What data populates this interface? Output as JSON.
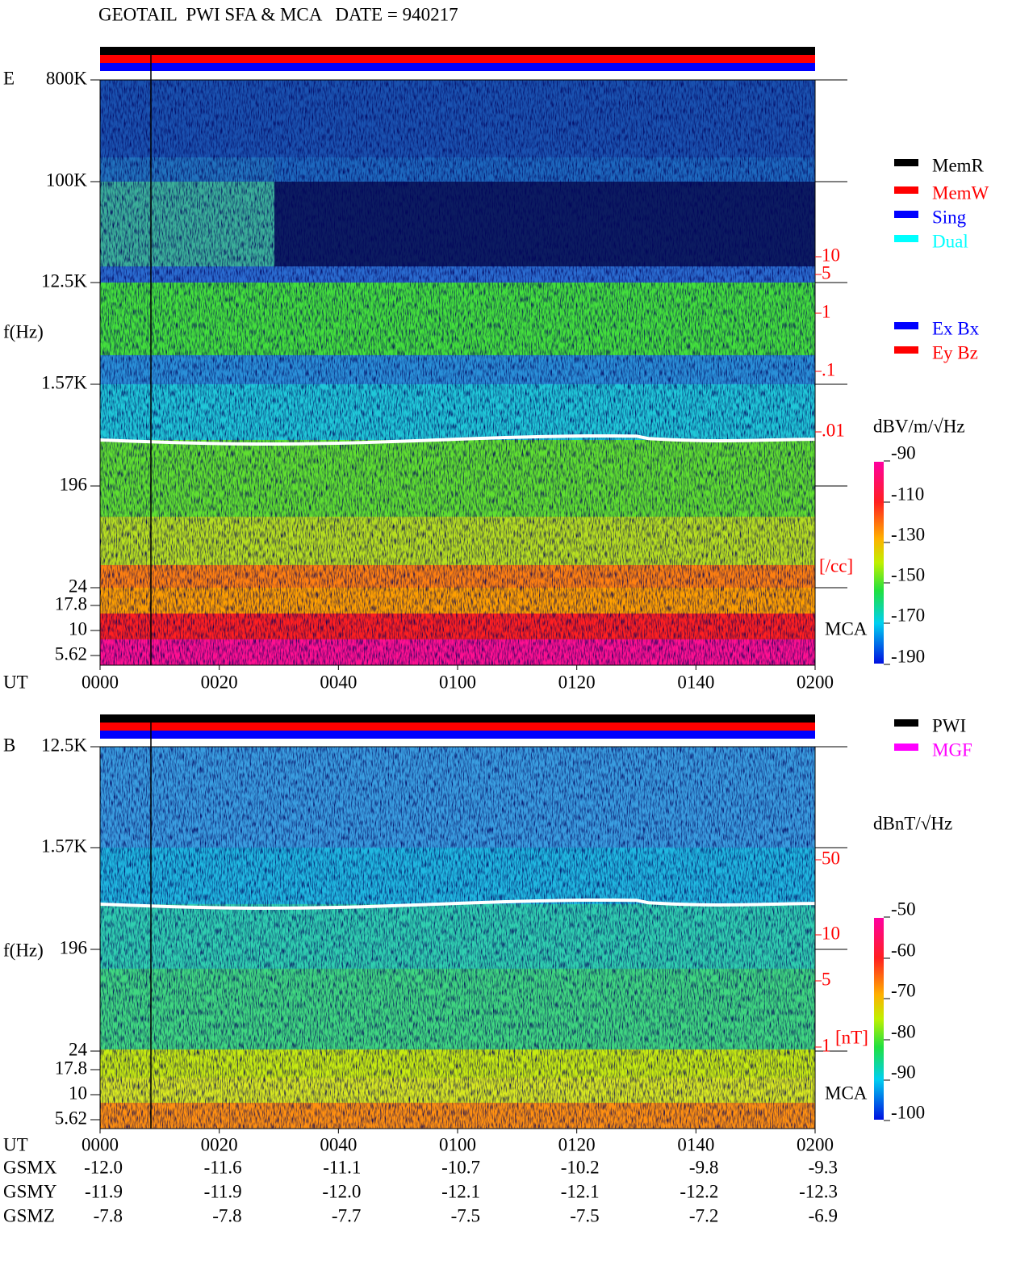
{
  "header": {
    "title": "GEOTAIL  PWI SFA & MCA   DATE = 940217"
  },
  "panels": [
    {
      "label": "E",
      "y_axis_label": "f(Hz)",
      "freq_ticks": [
        "800K",
        "100K",
        "12.5K",
        "1.57K",
        "196",
        "24",
        "17.8",
        "10",
        "5.62"
      ],
      "right_scale": [
        "10",
        "5",
        "1",
        ".1",
        ".01"
      ],
      "right_unit": "[/cc]",
      "mca_label": "MCA",
      "time_label": "UT",
      "time_ticks": [
        "0000",
        "0020",
        "0040",
        "0100",
        "0120",
        "0140",
        "0200"
      ],
      "legend": [
        {
          "name": "MemR",
          "color": "#000000"
        },
        {
          "name": "MemW",
          "color": "#ff0000"
        },
        {
          "name": "Sing",
          "color": "#0000ff"
        },
        {
          "name": "Dual",
          "color": "#00ffff"
        }
      ],
      "legend2": [
        {
          "name": "Ex Bx",
          "color": "#0000ff"
        },
        {
          "name": "Ey Bz",
          "color": "#ff0000"
        }
      ],
      "colorbar_unit": "dBV/m/√Hz",
      "colorbar_ticks": [
        "-90",
        "-110",
        "-130",
        "-150",
        "-170",
        "-190"
      ]
    },
    {
      "label": "B",
      "y_axis_label": "f(Hz)",
      "freq_ticks": [
        "12.5K",
        "1.57K",
        "196",
        "24",
        "17.8",
        "10",
        "5.62"
      ],
      "right_scale": [
        "50",
        "10",
        "5",
        "1"
      ],
      "right_unit": "[nT]",
      "mca_label": "MCA",
      "time_label": "UT",
      "time_ticks": [
        "0000",
        "0020",
        "0040",
        "0100",
        "0120",
        "0140",
        "0200"
      ],
      "legend": [
        {
          "name": "PWI",
          "color": "#000000"
        },
        {
          "name": "MGF",
          "color": "#ff00ff"
        }
      ],
      "legend2": [],
      "colorbar_unit": "dBnT/√Hz",
      "colorbar_ticks": [
        "-50",
        "-60",
        "-70",
        "-80",
        "-90",
        "-100"
      ]
    }
  ],
  "orbit": {
    "rows": [
      {
        "label": "GSMX",
        "values": [
          "-12.0",
          "-11.6",
          "-11.1",
          "-10.7",
          "-10.2",
          "-9.8",
          "-9.3"
        ]
      },
      {
        "label": "GSMY",
        "values": [
          "-11.9",
          "-11.9",
          "-12.0",
          "-12.1",
          "-12.1",
          "-12.2",
          "-12.3"
        ]
      },
      {
        "label": "GSMZ",
        "values": [
          "-7.8",
          "-7.8",
          "-7.7",
          "-7.5",
          "-7.5",
          "-7.2",
          "-6.9"
        ]
      }
    ]
  }
}
